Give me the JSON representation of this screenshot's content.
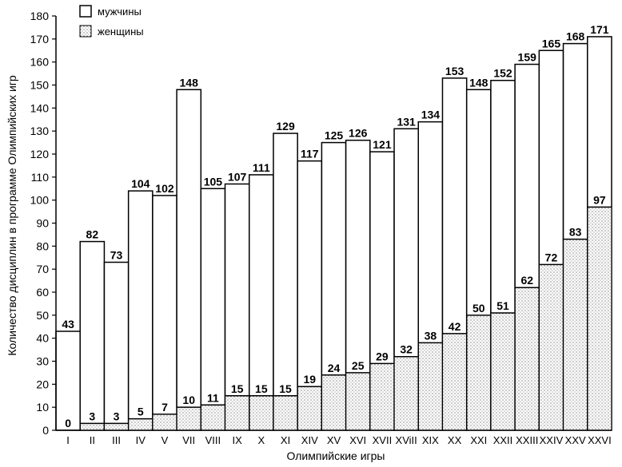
{
  "chart_data": {
    "type": "bar",
    "title": "",
    "xlabel": "Олимпийские игры",
    "ylabel": "Количество дисциплин в программе Олимпийских игр",
    "ylim": [
      0,
      180
    ],
    "yticks": [
      0,
      10,
      20,
      30,
      40,
      50,
      60,
      70,
      80,
      90,
      100,
      110,
      120,
      130,
      140,
      150,
      160,
      170,
      180
    ],
    "grid": false,
    "legend_position": "top-left",
    "categories": [
      "I",
      "II",
      "III",
      "IV",
      "V",
      "VII",
      "VIII",
      "IX",
      "X",
      "XI",
      "XIV",
      "XV",
      "XVI",
      "XVII",
      "XViII",
      "XIX",
      "XX",
      "XXI",
      "XXII",
      "XXIII",
      "XXIV",
      "XXV",
      "XXVI"
    ],
    "series": [
      {
        "name": "мужчины",
        "fill": "#ffffff",
        "values": [
          43,
          82,
          73,
          104,
          102,
          148,
          105,
          107,
          111,
          129,
          117,
          125,
          126,
          121,
          131,
          134,
          153,
          148,
          152,
          159,
          165,
          168,
          171
        ]
      },
      {
        "name": "женщины",
        "fill": "dotted",
        "values": [
          0,
          3,
          3,
          5,
          7,
          10,
          11,
          15,
          15,
          15,
          19,
          24,
          25,
          29,
          32,
          38,
          42,
          50,
          51,
          62,
          72,
          83,
          97
        ]
      }
    ]
  }
}
